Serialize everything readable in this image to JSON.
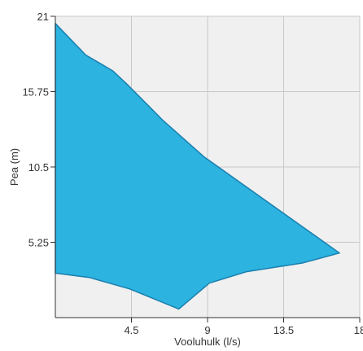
{
  "chart_data": {
    "type": "area",
    "title": "",
    "xlabel": "Vooluhulk (l/s)",
    "ylabel": "Pea (m)",
    "xlim": [
      0,
      18
    ],
    "ylim": [
      0,
      21
    ],
    "x_ticks": [
      4.5,
      9,
      13.5,
      18
    ],
    "x_tick_labels": [
      "4.5",
      "9",
      "13.5",
      "18"
    ],
    "y_ticks": [
      5.25,
      10.5,
      15.75,
      21
    ],
    "y_tick_labels": [
      "5.25",
      "10.5",
      "15.75",
      "21"
    ],
    "grid": true,
    "colors": {
      "fill": "#2cb3e0",
      "stroke": "#1a7fae",
      "plot_bg": "#f0f0f0",
      "grid": "#c8c8c8",
      "axis": "#333333"
    },
    "envelope": {
      "upper": [
        {
          "x": 0.0,
          "y": 20.5
        },
        {
          "x": 1.8,
          "y": 18.3
        },
        {
          "x": 3.4,
          "y": 17.2
        },
        {
          "x": 4.3,
          "y": 16.2
        },
        {
          "x": 6.4,
          "y": 13.7
        },
        {
          "x": 8.8,
          "y": 11.2
        },
        {
          "x": 16.8,
          "y": 4.5
        }
      ],
      "lower": [
        {
          "x": 16.8,
          "y": 4.5
        },
        {
          "x": 14.6,
          "y": 3.8
        },
        {
          "x": 11.3,
          "y": 3.2
        },
        {
          "x": 9.1,
          "y": 2.4
        },
        {
          "x": 7.3,
          "y": 0.6
        },
        {
          "x": 4.4,
          "y": 2.0
        },
        {
          "x": 2.0,
          "y": 2.8
        },
        {
          "x": 0.0,
          "y": 3.1
        }
      ]
    }
  }
}
